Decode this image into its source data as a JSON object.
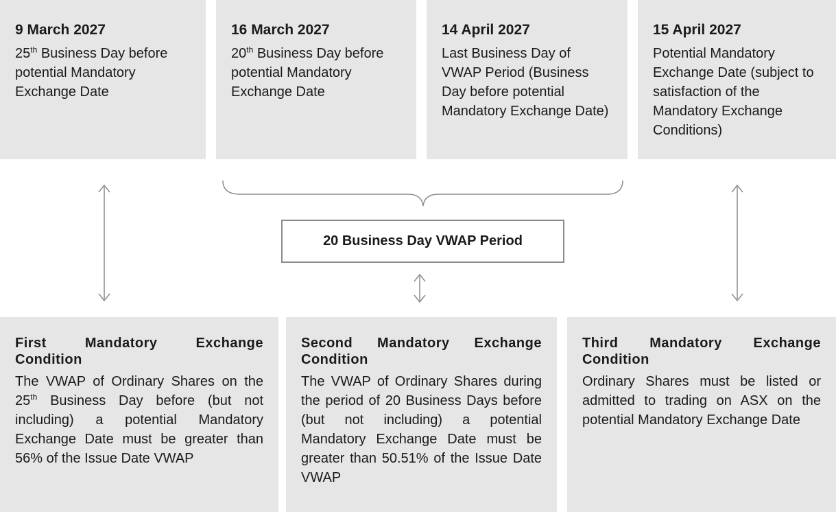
{
  "top_boxes": [
    {
      "date": "9 March 2027",
      "ordinal": "25",
      "suffix": "th",
      "text": "Business Day before potential Mandatory Exchange Date"
    },
    {
      "date": "16 March 2027",
      "ordinal": "20",
      "suffix": "th",
      "text": "Business Day before potential Mandatory Exchange Date"
    },
    {
      "date": "14 April 2027",
      "text": "Last Business Day of VWAP Period (Business Day before potential Mandatory Exchange Date)"
    },
    {
      "date": "15 April 2027",
      "text": "Potential Mandatory Exchange Date (subject to satisfaction of the Mandatory Exchange Conditions)"
    }
  ],
  "period_label": "20 Business Day VWAP Period",
  "bottom_boxes": [
    {
      "title": "First Mandatory Exchange Condition",
      "text_before": "The VWAP of Ordinary Shares on the",
      "ordinal": "25",
      "suffix": "th",
      "text": "Business Day before (but not including) a potential Mandatory Exchange Date must be greater than 56% of the Issue Date VWAP"
    },
    {
      "title": "Second Mandatory Exchange Condition",
      "text": "The VWAP of Ordinary Shares during the period of 20 Business Days before (but not including) a potential Mandatory Exchange Date must be greater than 50.51% of the Issue Date VWAP"
    },
    {
      "title": "Third Mandatory Exchange Condition",
      "text": "Ordinary Shares must be listed or admitted to trading on ASX on the potential Mandatory Exchange Date"
    }
  ]
}
